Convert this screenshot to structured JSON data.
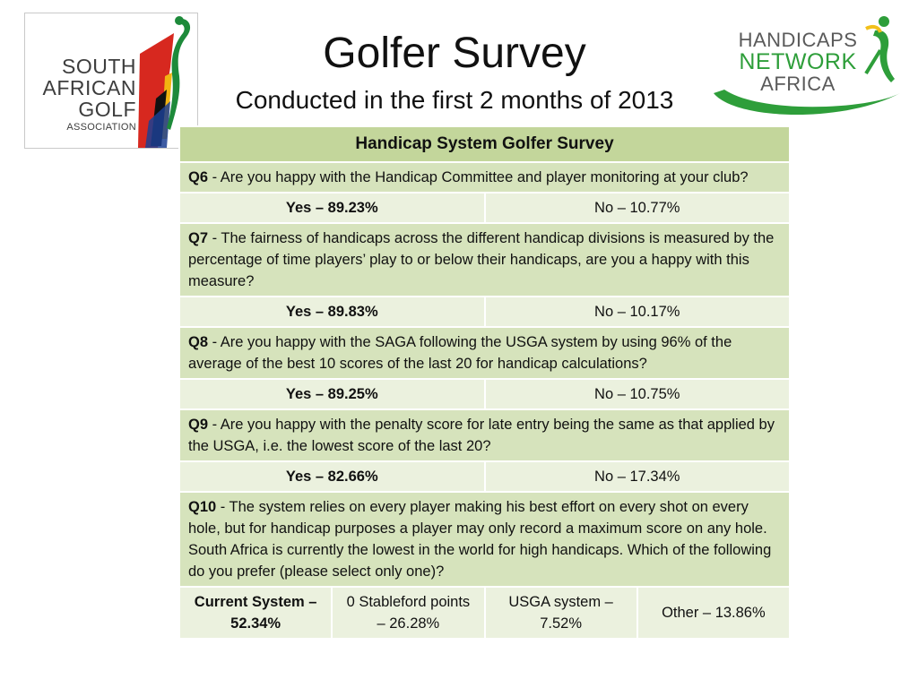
{
  "logos": {
    "left": {
      "lines": [
        "SOUTH",
        "AFRICAN",
        "GOLF",
        "ASSOCIATION"
      ],
      "colors": {
        "red": "#d7281f",
        "green": "#1d8a3a",
        "yellow": "#f2b411",
        "blue": "#1c3f93",
        "black": "#111111"
      }
    },
    "right": {
      "lines": [
        "HANDICAPS",
        "NETWORK",
        "AFRICA"
      ],
      "colors": {
        "grey": "#5a5a5a",
        "green": "#2e9e3a",
        "yellow": "#f2c01a"
      }
    }
  },
  "title": "Golfer Survey",
  "subtitle": "Conducted in the first 2 months of 2013",
  "table": {
    "header": "Handicap System Golfer Survey",
    "colors": {
      "header_bg": "#c3d69b",
      "question_bg": "#d6e3bc",
      "answer_bg": "#ebf1de"
    },
    "questions": [
      {
        "number": "Q6",
        "text": " - Are you happy with the Handicap Committee and player monitoring at your club?",
        "answers": [
          "Yes – 89.23%",
          "No – 10.77%"
        ]
      },
      {
        "number": "Q7",
        "text": " - The fairness of handicaps across the different handicap divisions is measured by the percentage of time players’ play to or below their handicaps, are you a happy with this measure?",
        "answers": [
          "Yes – 89.83%",
          "No – 10.17%"
        ]
      },
      {
        "number": "Q8",
        "text": " - Are you happy with the SAGA following the USGA system by using 96% of the average of the best 10 scores of the last 20 for handicap calculations?",
        "answers": [
          "Yes – 89.25%",
          "No – 10.75%"
        ]
      },
      {
        "number": "Q9",
        "text": " - Are you happy with the penalty score for late entry being the same as that applied by the USGA, i.e. the lowest score of the last 20?",
        "answers": [
          "Yes – 82.66%",
          "No – 17.34%"
        ]
      },
      {
        "number": "Q10",
        "text": " - The system relies on every player making his best effort on every shot on every hole, but for handicap purposes a player may only record a maximum score on any hole. South Africa is currently the lowest in the world for high handicaps. Which of the following do you prefer (please select only one)?",
        "answers": [
          "Current System – 52.34%",
          "0 Stableford points – 26.28%",
          "USGA system – 7.52%",
          "Other – 13.86%"
        ]
      }
    ]
  }
}
